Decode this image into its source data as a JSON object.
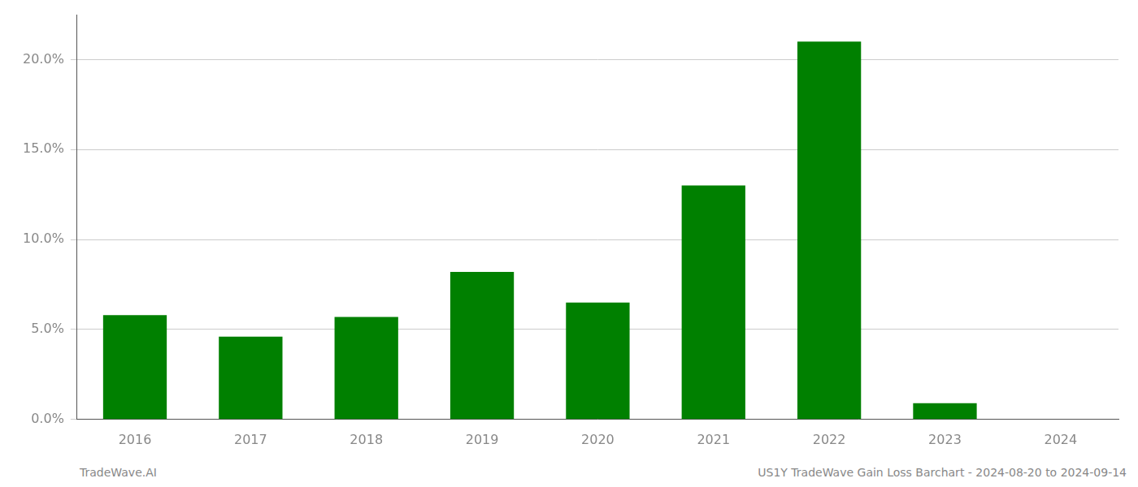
{
  "chart_data": {
    "type": "bar",
    "categories": [
      "2016",
      "2017",
      "2018",
      "2019",
      "2020",
      "2021",
      "2022",
      "2023",
      "2024"
    ],
    "values": [
      0.058,
      0.046,
      0.057,
      0.082,
      0.065,
      0.13,
      0.21,
      0.009,
      0.0
    ],
    "color": "#008000",
    "ylim": [
      0,
      0.225
    ],
    "yticks": [
      {
        "value": 0.0,
        "label": "0.0%"
      },
      {
        "value": 0.05,
        "label": "5.0%"
      },
      {
        "value": 0.1,
        "label": "10.0%"
      },
      {
        "value": 0.15,
        "label": "15.0%"
      },
      {
        "value": 0.2,
        "label": "20.0%"
      }
    ],
    "grid": true,
    "annotations": [
      "TradeWave.AI",
      "US1Y TradeWave Gain Loss Barchart - 2024-08-20 to 2024-09-14"
    ]
  }
}
